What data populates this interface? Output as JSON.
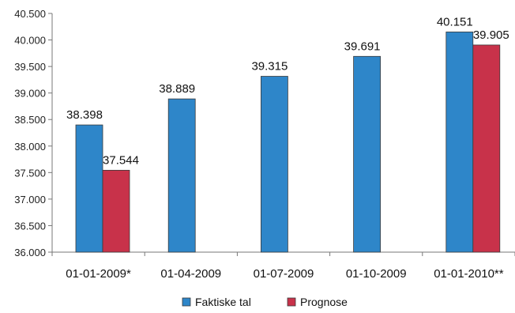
{
  "chart_data": {
    "type": "bar",
    "categories": [
      "01-01-2009*",
      "01-04-2009",
      "01-07-2009",
      "01-10-2009",
      "01-01-2010**"
    ],
    "series": [
      {
        "name": "Faktiske tal",
        "color": "#2e86c9",
        "values": [
          38398,
          38889,
          39315,
          39691,
          40151
        ],
        "labels": [
          "38.398",
          "38.889",
          "39.315",
          "39.691",
          "40.151"
        ]
      },
      {
        "name": "Prognose",
        "color": "#c8324a",
        "values": [
          37544,
          null,
          null,
          null,
          39905
        ],
        "labels": [
          "37.544",
          null,
          null,
          null,
          "39.905"
        ]
      }
    ],
    "ylim": [
      36000,
      40500
    ],
    "yticks": [
      36000,
      36500,
      37000,
      37500,
      38000,
      38500,
      39000,
      39500,
      40000,
      40500
    ],
    "ytick_labels": [
      "36.000",
      "36.500",
      "37.000",
      "37.500",
      "38.000",
      "38.500",
      "39.000",
      "39.500",
      "40.000",
      "40.500"
    ],
    "grid": false,
    "legend": "bottom"
  }
}
